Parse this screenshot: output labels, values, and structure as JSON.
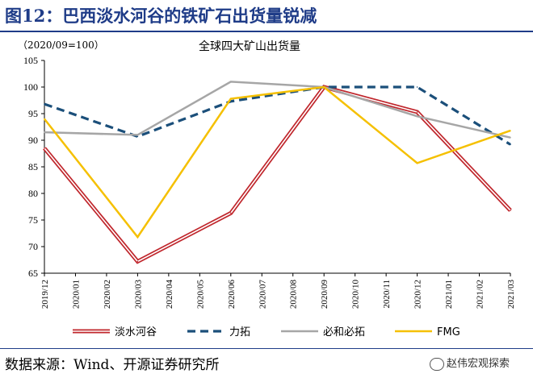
{
  "figure": {
    "title": "图12：巴西淡水河谷的铁矿石出货量锐减",
    "unit_note": "（2020/09=100）",
    "source": "数据来源：Wind、开源证券研究所",
    "watermark": "赵伟宏观探索"
  },
  "chart_data": {
    "type": "line",
    "title": "全球四大矿山出货量",
    "xlabel": "",
    "ylabel": "",
    "ylim": [
      65,
      105
    ],
    "yticks": [
      65,
      70,
      75,
      80,
      85,
      90,
      95,
      100,
      105
    ],
    "categories": [
      "2019/12",
      "2020/01",
      "2020/02",
      "2020/03",
      "2020/04",
      "2020/05",
      "2020/06",
      "2020/07",
      "2020/08",
      "2020/09",
      "2020/10",
      "2020/11",
      "2020/12",
      "2021/01",
      "2021/02",
      "2021/03"
    ],
    "series": [
      {
        "name": "淡水河谷",
        "color": "#c0272d",
        "style": "double",
        "x": [
          0,
          3,
          6,
          9,
          12,
          15
        ],
        "values": [
          88.5,
          67.2,
          76.3,
          100.0,
          95.3,
          76.8
        ]
      },
      {
        "name": "力拓",
        "color": "#1b4f7a",
        "style": "dashed",
        "x": [
          0,
          3,
          6,
          9,
          12,
          15
        ],
        "values": [
          96.8,
          90.7,
          97.3,
          100.0,
          100.0,
          89.2
        ]
      },
      {
        "name": "必和必拓",
        "color": "#a6a6a6",
        "style": "solid",
        "x": [
          0,
          3,
          6,
          9,
          12,
          15
        ],
        "values": [
          91.5,
          91.0,
          101.0,
          100.0,
          94.5,
          90.5
        ]
      },
      {
        "name": "FMG",
        "color": "#f5c000",
        "style": "solid",
        "x": [
          0,
          3,
          6,
          9,
          12,
          15
        ],
        "values": [
          94.0,
          71.8,
          97.8,
          100.0,
          85.7,
          91.8
        ]
      }
    ],
    "legend_position": "bottom"
  }
}
